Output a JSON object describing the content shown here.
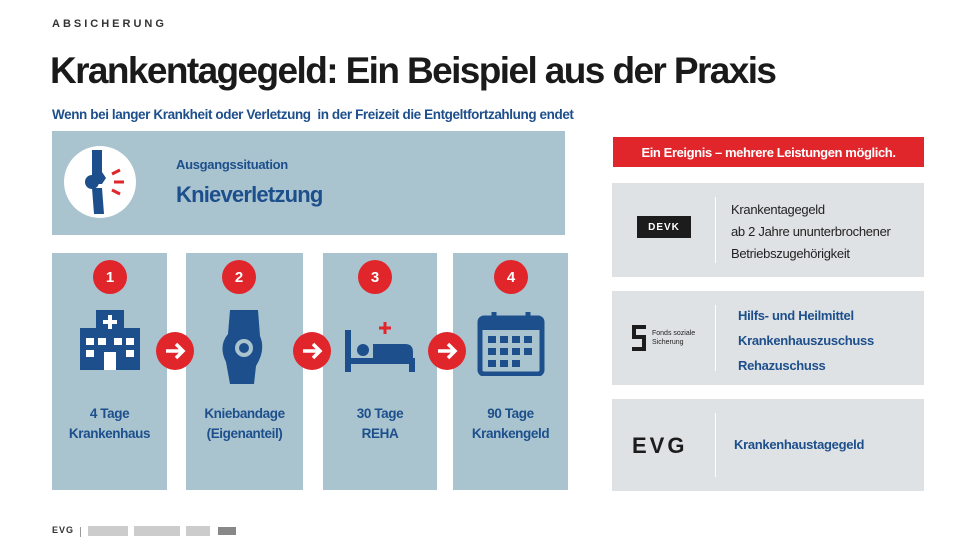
{
  "header": {
    "kicker": "ABSICHERUNG",
    "title": "Krankentagegeld: Ein Beispiel aus der Praxis",
    "subtitle": "Wenn bei langer Krankheit oder Verletzung  in der Freizeit die Entgeltfortzahlung endet"
  },
  "situation": {
    "label": "Ausgangssituation",
    "title": "Knieverletzung"
  },
  "steps": [
    {
      "number": 1,
      "lines": [
        "4 Tage",
        "Krankenhaus"
      ]
    },
    {
      "number": 2,
      "lines": [
        "Kniebandage",
        "(Eigenanteil)"
      ]
    },
    {
      "number": 3,
      "lines": [
        "30 Tage",
        "REHA"
      ]
    },
    {
      "number": 4,
      "lines": [
        "90 Tage",
        "Krankengeld"
      ]
    }
  ],
  "banner": "Ein Ereignis – mehrere Leistungen möglich.",
  "providers": [
    {
      "logo": "DEVK",
      "lines": [
        "Krankentagegeld",
        "ab 2 Jahre ununterbrochener",
        "Betriebszugehörigkeit"
      ]
    },
    {
      "logo": [
        "Fonds soziale",
        "Sicherung"
      ],
      "lines": [
        "Hilfs- und Heilmittel",
        "Krankenhauszuschuss",
        "Rehazuschuss"
      ]
    },
    {
      "logo": "EVG",
      "lines": [
        "Krankenhaustagegeld"
      ]
    }
  ],
  "footer": {
    "logo": "EVG"
  }
}
